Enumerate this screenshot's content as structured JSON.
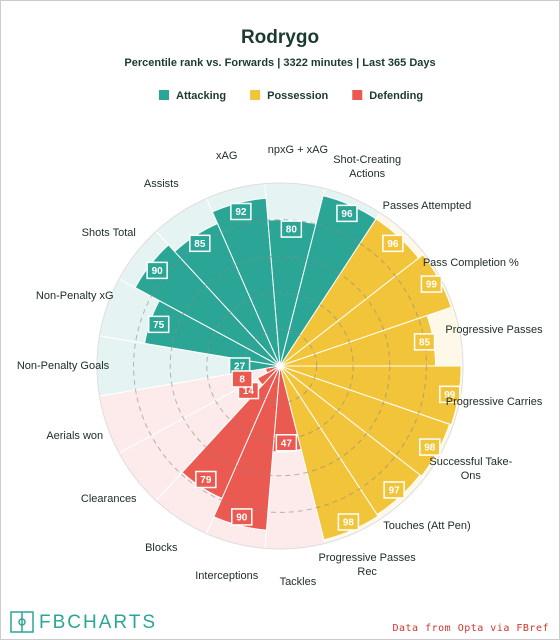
{
  "chart_data": {
    "type": "pizza",
    "title": "Rodrygo",
    "subtitle": "Percentile rank vs. Forwards | 3322 minutes | Last 365 Days",
    "ylim": [
      0,
      100
    ],
    "yticks": [
      20,
      40,
      60,
      80
    ],
    "series": [
      {
        "name": "Attacking",
        "color": "#2ba696",
        "categories": [
          "Non-Penalty Goals",
          "Non-Penalty xG",
          "Shots Total",
          "Assists",
          "xAG",
          "npxG + xAG",
          "Shot-Creating Actions"
        ],
        "values": [
          27,
          75,
          90,
          85,
          92,
          80,
          96
        ]
      },
      {
        "name": "Possession",
        "color": "#f2c43a",
        "categories": [
          "Passes Attempted",
          "Pass Completion %",
          "Progressive Passes",
          "Progressive Carries",
          "Successful Take-Ons",
          "Touches (Att Pen)",
          "Progressive Passes Rec"
        ],
        "values": [
          96,
          99,
          85,
          99,
          98,
          97,
          98
        ]
      },
      {
        "name": "Defending",
        "color": "#ea5a50",
        "categories": [
          "Tackles",
          "Interceptions",
          "Blocks",
          "Clearances",
          "Aerials won"
        ],
        "values": [
          47,
          90,
          79,
          14,
          8
        ]
      }
    ],
    "logo": "FBCHARTS",
    "source": "Data from Opta via FBref"
  }
}
